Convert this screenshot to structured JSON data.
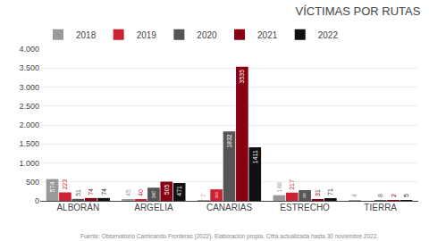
{
  "chart_data": {
    "type": "bar",
    "title": "VÍCTIMAS POR RUTAS",
    "categories": [
      "ALBORÁN",
      "ARGELIA",
      "CANARIAS",
      "ESTRECHO",
      "TIERRA"
    ],
    "series": [
      {
        "name": "2018",
        "color": "#999999",
        "values": [
          574,
          45,
          7,
          148,
          4
        ]
      },
      {
        "name": "2019",
        "color": "#cc2233",
        "values": [
          223,
          40,
          303,
          217,
          0
        ]
      },
      {
        "name": "2020",
        "color": "#555555",
        "values": [
          51,
          347,
          1832,
          282,
          8
        ]
      },
      {
        "name": "2021",
        "color": "#880011",
        "values": [
          74,
          505,
          3535,
          31,
          2
        ]
      },
      {
        "name": "2022",
        "color": "#111111",
        "values": [
          74,
          471,
          1411,
          71,
          5
        ]
      }
    ],
    "ylim": [
      0,
      4000
    ],
    "yticks": [
      0,
      500,
      {
        "value": 1000,
        "label": "1.000"
      },
      {
        "value": 1500,
        "label": "1.500"
      },
      {
        "value": 2000,
        "label": "2.000"
      },
      {
        "value": 2500,
        "label": "2.500"
      },
      {
        "value": 3000,
        "label": "3.000"
      },
      {
        "value": 3500,
        "label": "3.500"
      },
      {
        "value": 4000,
        "label": "4.000"
      }
    ],
    "grid": true,
    "legend": "upper left",
    "data_labels": true,
    "annotations": [
      "Fuente: Observatorio Caminando Fronteras (2022). Elaboración propia. Cifra actualizada hasta 30 noviembre 2022."
    ]
  }
}
